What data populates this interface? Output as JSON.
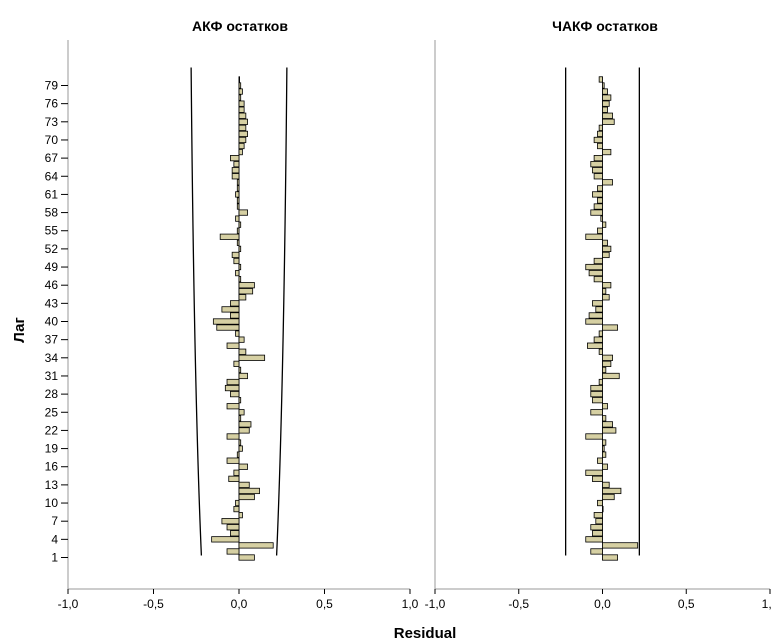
{
  "x_axis_label": "Residual",
  "y_axis_label": "Лаг",
  "lag_tick_labels": [
    "1",
    "4",
    "7",
    "10",
    "13",
    "16",
    "19",
    "22",
    "25",
    "28",
    "31",
    "34",
    "37",
    "40",
    "43",
    "46",
    "49",
    "52",
    "55",
    "58",
    "61",
    "64",
    "67",
    "70",
    "73",
    "76",
    "79"
  ],
  "chart_data": [
    {
      "type": "bar",
      "orientation": "horizontal",
      "title": "АКФ остатков",
      "xlabel": "Residual",
      "ylabel": "Лаг",
      "xlim": [
        -1.0,
        1.0
      ],
      "x_tick_labels": [
        "-1,0",
        "-0,5",
        "0,0",
        "0,5",
        "1,0"
      ],
      "categories": [
        1,
        2,
        3,
        4,
        5,
        6,
        7,
        8,
        9,
        10,
        11,
        12,
        13,
        14,
        15,
        16,
        17,
        18,
        19,
        20,
        21,
        22,
        23,
        24,
        25,
        26,
        27,
        28,
        29,
        30,
        31,
        32,
        33,
        34,
        35,
        36,
        37,
        38,
        39,
        40,
        41,
        42,
        43,
        44,
        45,
        46,
        47,
        48,
        49,
        50,
        51,
        52,
        53,
        54,
        55,
        56,
        57,
        58,
        59,
        60,
        61,
        62,
        63,
        64,
        65,
        66,
        67,
        68,
        69,
        70,
        71,
        72,
        73,
        74,
        75,
        76,
        77,
        78,
        79,
        80
      ],
      "values": [
        0.09,
        -0.07,
        0.2,
        -0.16,
        -0.05,
        -0.07,
        -0.1,
        0.02,
        -0.03,
        -0.02,
        0.09,
        0.12,
        0.06,
        -0.06,
        -0.03,
        0.05,
        -0.07,
        -0.01,
        0.02,
        0.01,
        -0.07,
        0.06,
        0.07,
        0.01,
        0.03,
        -0.07,
        0.01,
        -0.05,
        -0.08,
        -0.07,
        0.05,
        0.01,
        -0.03,
        0.15,
        0.04,
        -0.07,
        0.03,
        -0.02,
        -0.13,
        -0.15,
        -0.05,
        -0.1,
        -0.05,
        0.04,
        0.08,
        0.09,
        0.01,
        -0.02,
        0.01,
        -0.03,
        -0.04,
        0.01,
        -0.01,
        -0.11,
        -0.01,
        0.01,
        -0.02,
        0.05,
        -0.01,
        -0.01,
        -0.02,
        -0.01,
        -0.01,
        -0.04,
        -0.04,
        -0.03,
        -0.05,
        0.02,
        0.03,
        0.04,
        0.05,
        0.04,
        0.05,
        0.04,
        0.03,
        0.03,
        0.01,
        0.02,
        0.01,
        0.0
      ],
      "confidence_bounds": [
        [
          -0.22,
          0.22
        ],
        [
          -0.28,
          0.28
        ]
      ]
    },
    {
      "type": "bar",
      "orientation": "horizontal",
      "title": "ЧАКФ остатков",
      "xlabel": "Residual",
      "ylabel": "Лаг",
      "xlim": [
        -1.0,
        1.0
      ],
      "x_tick_labels": [
        "-1,0",
        "-0,5",
        "0,0",
        "0,5",
        "1,0"
      ],
      "categories": [
        1,
        2,
        3,
        4,
        5,
        6,
        7,
        8,
        9,
        10,
        11,
        12,
        13,
        14,
        15,
        16,
        17,
        18,
        19,
        20,
        21,
        22,
        23,
        24,
        25,
        26,
        27,
        28,
        29,
        30,
        31,
        32,
        33,
        34,
        35,
        36,
        37,
        38,
        39,
        40,
        41,
        42,
        43,
        44,
        45,
        46,
        47,
        48,
        49,
        50,
        51,
        52,
        53,
        54,
        55,
        56,
        57,
        58,
        59,
        60,
        61,
        62,
        63,
        64,
        65,
        66,
        67,
        68,
        69,
        70,
        71,
        72,
        73,
        74,
        75,
        76,
        77,
        78,
        79,
        80
      ],
      "values": [
        0.09,
        -0.07,
        0.21,
        -0.1,
        -0.06,
        -0.07,
        -0.04,
        -0.05,
        0.0,
        -0.03,
        0.07,
        0.11,
        0.04,
        -0.06,
        -0.1,
        0.03,
        -0.03,
        0.02,
        0.01,
        0.02,
        -0.1,
        0.08,
        0.06,
        0.02,
        -0.07,
        0.03,
        -0.06,
        -0.07,
        -0.07,
        -0.02,
        0.1,
        0.02,
        0.05,
        0.06,
        -0.02,
        -0.09,
        -0.05,
        -0.02,
        0.09,
        -0.1,
        -0.08,
        -0.04,
        -0.06,
        0.04,
        0.02,
        0.05,
        -0.05,
        -0.08,
        -0.1,
        -0.05,
        0.04,
        0.05,
        0.03,
        -0.1,
        -0.03,
        0.02,
        -0.01,
        -0.07,
        -0.05,
        -0.03,
        -0.06,
        -0.03,
        0.06,
        -0.05,
        -0.06,
        -0.07,
        -0.05,
        0.05,
        -0.03,
        -0.05,
        -0.03,
        -0.02,
        0.07,
        0.06,
        0.03,
        0.04,
        0.05,
        0.03,
        0.01,
        -0.02
      ],
      "confidence_bounds": [
        [
          -0.22,
          0.22
        ]
      ]
    }
  ]
}
